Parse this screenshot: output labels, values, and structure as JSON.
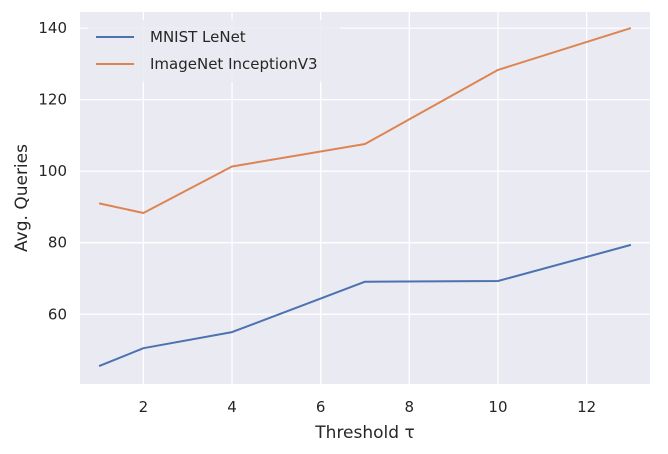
{
  "chart_data": {
    "type": "line",
    "xlabel": "Threshold τ",
    "ylabel": "Avg. Queries",
    "xlim": [
      0.57,
      13.43
    ],
    "ylim": [
      40.5,
      144.5
    ],
    "xticks": [
      2,
      4,
      6,
      8,
      10,
      12
    ],
    "yticks": [
      60,
      80,
      100,
      120,
      140
    ],
    "grid": true,
    "legend_position": "top-left",
    "background": "#eaeaf2",
    "x": [
      1,
      2,
      4,
      7,
      10,
      13
    ],
    "series": [
      {
        "name": "MNIST LeNet",
        "color": "#4c72b0",
        "values": [
          45.5,
          50.5,
          55.0,
          69.1,
          69.3,
          79.4
        ]
      },
      {
        "name": "ImageNet InceptionV3",
        "color": "#dd8452",
        "values": [
          91.0,
          88.3,
          101.3,
          107.6,
          128.3,
          140.0
        ]
      }
    ]
  }
}
